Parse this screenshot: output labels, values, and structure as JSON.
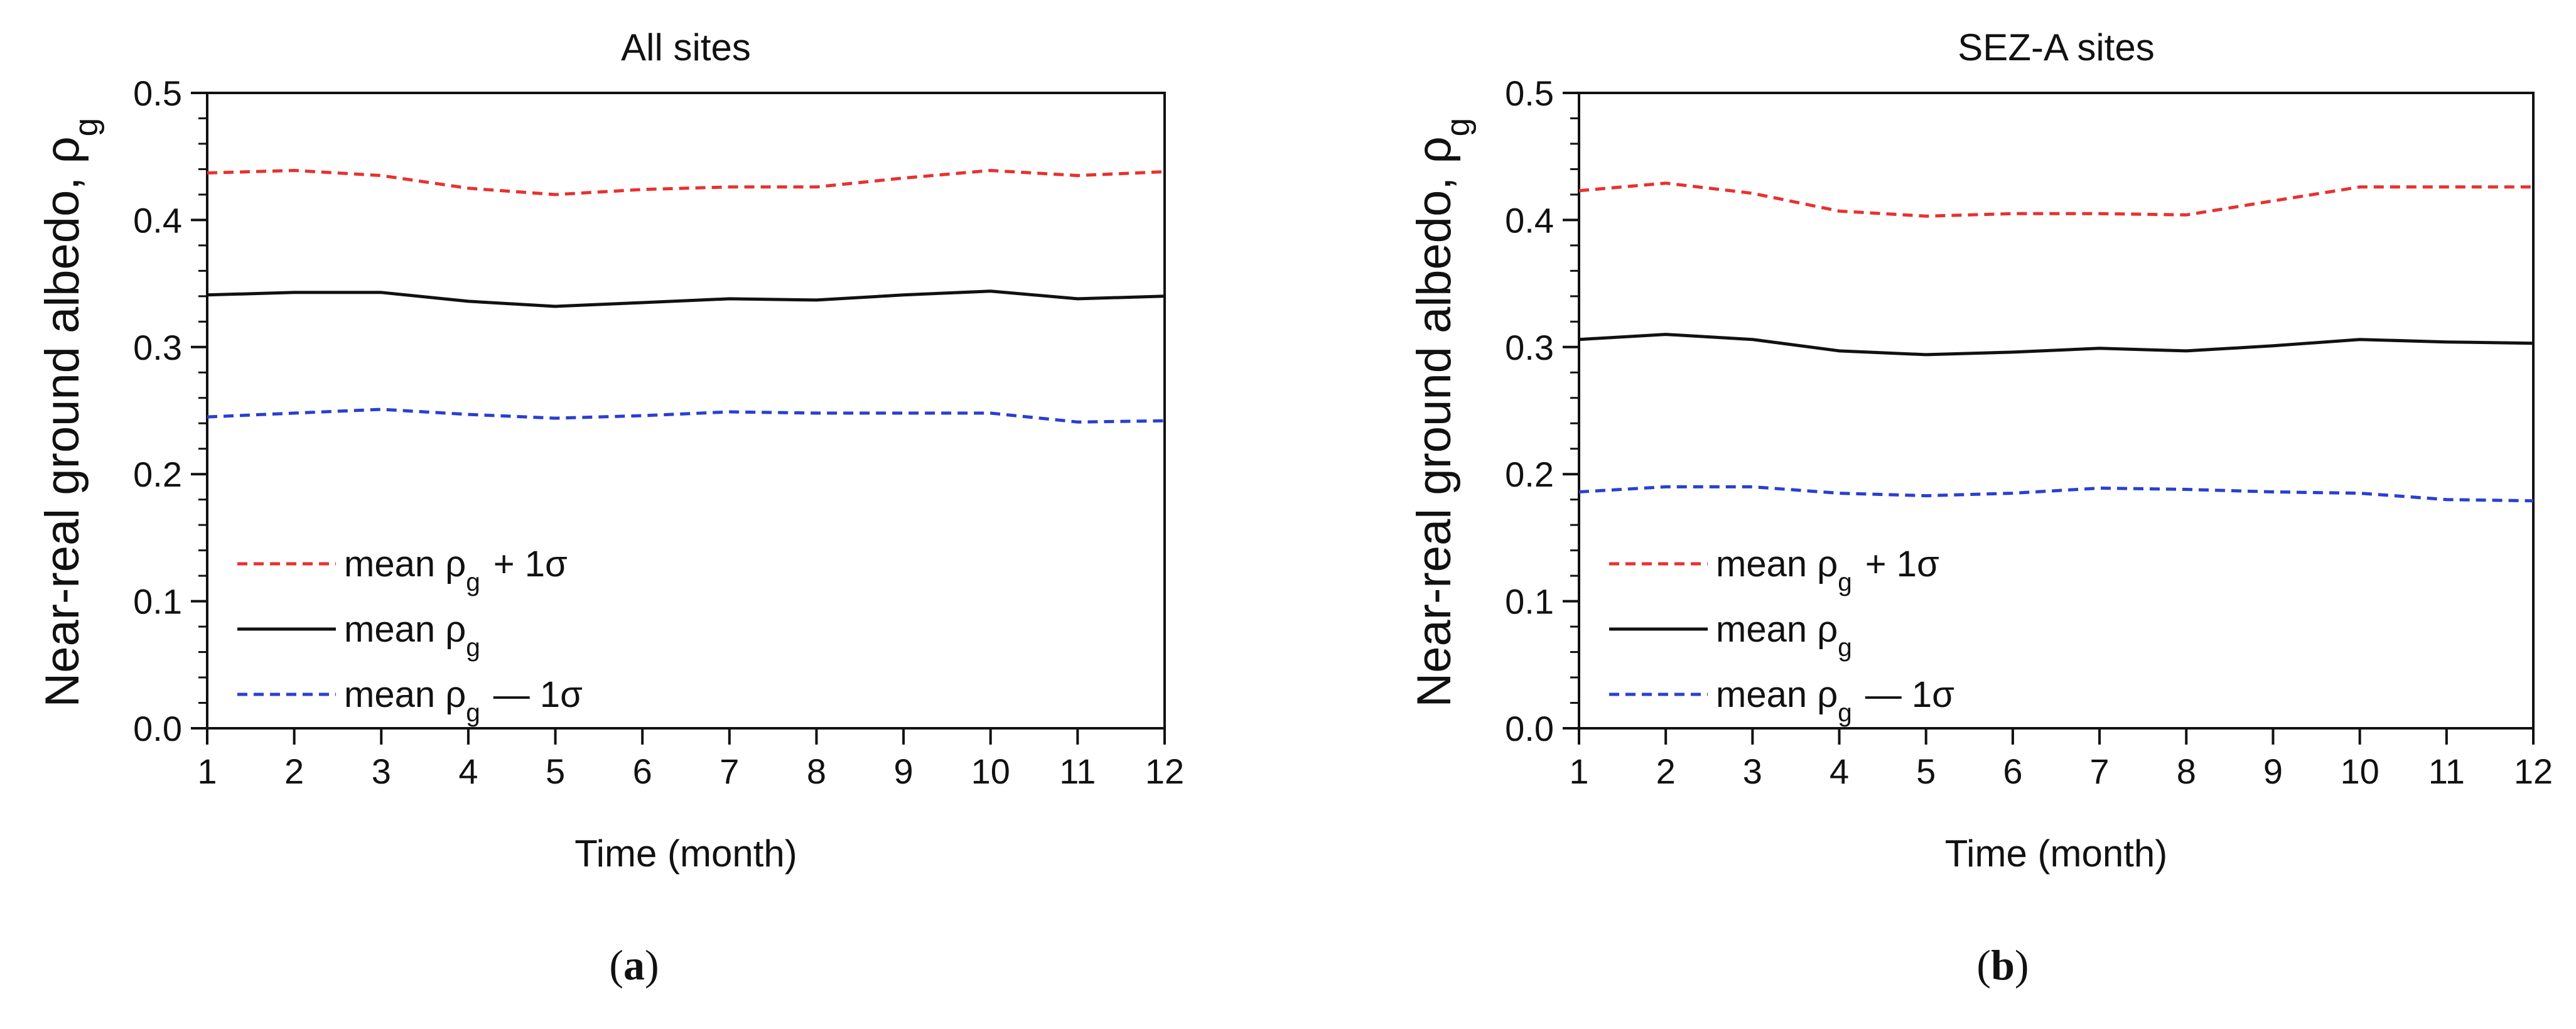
{
  "chart_data": [
    {
      "type": "line",
      "title": "All sites",
      "panel_label": "(a)",
      "xlabel": "Time (month)",
      "ylabel": "Near-real ground albedo, ρg",
      "xlim": [
        1,
        12
      ],
      "ylim": [
        0.0,
        0.5
      ],
      "x": [
        1,
        2,
        3,
        4,
        5,
        6,
        7,
        8,
        9,
        10,
        11,
        12
      ],
      "x_ticks": [
        "1",
        "2",
        "3",
        "4",
        "5",
        "6",
        "7",
        "8",
        "9",
        "10",
        "11",
        "12"
      ],
      "y_ticks": [
        "0.0",
        "0.1",
        "0.2",
        "0.3",
        "0.4",
        "0.5"
      ],
      "legend_position": "lower-left",
      "series": [
        {
          "name": "mean ρg + 1σ",
          "color": "#e8312f",
          "style": "dashed",
          "values": [
            0.437,
            0.439,
            0.435,
            0.425,
            0.42,
            0.424,
            0.426,
            0.426,
            0.433,
            0.439,
            0.435,
            0.438
          ]
        },
        {
          "name": "mean ρg",
          "color": "#111111",
          "style": "solid",
          "values": [
            0.341,
            0.343,
            0.343,
            0.336,
            0.332,
            0.335,
            0.338,
            0.337,
            0.341,
            0.344,
            0.338,
            0.34
          ]
        },
        {
          "name": "mean ρg — 1σ",
          "color": "#2a3fd1",
          "style": "dashed",
          "values": [
            0.245,
            0.248,
            0.251,
            0.247,
            0.244,
            0.246,
            0.249,
            0.248,
            0.248,
            0.248,
            0.241,
            0.242
          ]
        }
      ]
    },
    {
      "type": "line",
      "title": "SEZ-A sites",
      "panel_label": "(b)",
      "xlabel": "Time (month)",
      "ylabel": "Near-real ground albedo, ρg",
      "xlim": [
        1,
        12
      ],
      "ylim": [
        0.0,
        0.5
      ],
      "x": [
        1,
        2,
        3,
        4,
        5,
        6,
        7,
        8,
        9,
        10,
        11,
        12
      ],
      "x_ticks": [
        "1",
        "2",
        "3",
        "4",
        "5",
        "6",
        "7",
        "8",
        "9",
        "10",
        "11",
        "12"
      ],
      "y_ticks": [
        "0.0",
        "0.1",
        "0.2",
        "0.3",
        "0.4",
        "0.5"
      ],
      "legend_position": "lower-left",
      "series": [
        {
          "name": "mean ρg + 1σ",
          "color": "#e8312f",
          "style": "dashed",
          "values": [
            0.423,
            0.429,
            0.421,
            0.407,
            0.403,
            0.405,
            0.405,
            0.404,
            0.415,
            0.426,
            0.426,
            0.426
          ]
        },
        {
          "name": "mean ρg",
          "color": "#111111",
          "style": "solid",
          "values": [
            0.306,
            0.31,
            0.306,
            0.297,
            0.294,
            0.296,
            0.299,
            0.297,
            0.301,
            0.306,
            0.304,
            0.303
          ]
        },
        {
          "name": "mean ρg — 1σ",
          "color": "#2a3fd1",
          "style": "dashed",
          "values": [
            0.186,
            0.19,
            0.19,
            0.185,
            0.183,
            0.185,
            0.189,
            0.188,
            0.186,
            0.185,
            0.18,
            0.179
          ]
        }
      ]
    }
  ]
}
